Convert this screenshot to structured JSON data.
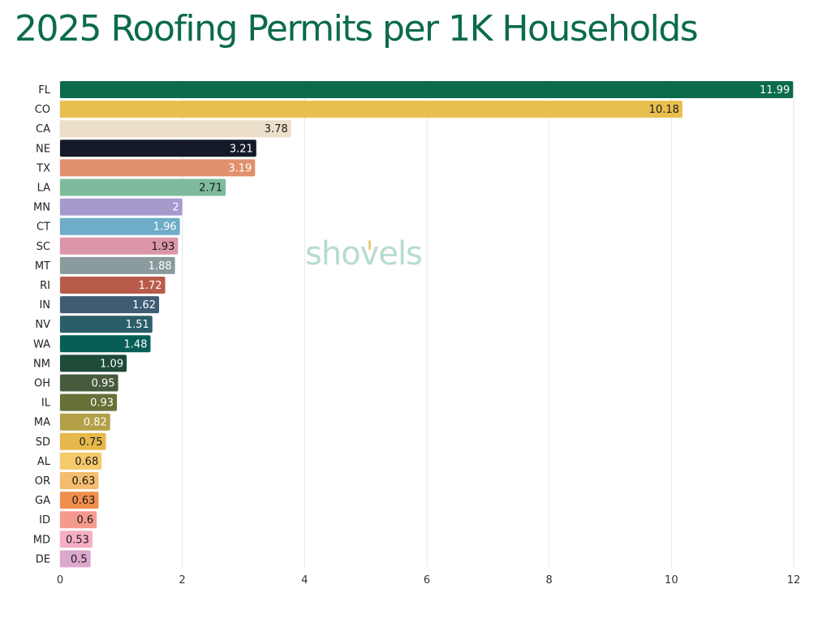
{
  "title": "2025 Roofing Permits per 1K Households",
  "watermark": "shovels",
  "chart_data": {
    "type": "bar",
    "orientation": "horizontal",
    "title": "2025 Roofing Permits per 1K Households",
    "xlabel": "",
    "ylabel": "",
    "xlim": [
      0,
      12
    ],
    "xticks": [
      0,
      2,
      4,
      6,
      8,
      10,
      12
    ],
    "grid": true,
    "categories": [
      "FL",
      "CO",
      "CA",
      "NE",
      "TX",
      "LA",
      "MN",
      "CT",
      "SC",
      "MT",
      "RI",
      "IN",
      "NV",
      "WA",
      "NM",
      "OH",
      "IL",
      "MA",
      "SD",
      "AL",
      "OR",
      "GA",
      "ID",
      "MD",
      "DE"
    ],
    "values": [
      11.99,
      10.18,
      3.78,
      3.21,
      3.19,
      2.71,
      2,
      1.96,
      1.93,
      1.88,
      1.72,
      1.62,
      1.51,
      1.48,
      1.09,
      0.95,
      0.93,
      0.82,
      0.75,
      0.68,
      0.63,
      0.63,
      0.6,
      0.53,
      0.5
    ],
    "colors": [
      "#0b6b4a",
      "#e8bf4e",
      "#ebdfca",
      "#141a2a",
      "#e0906c",
      "#7dbb9c",
      "#a899cd",
      "#6eacc7",
      "#db96a9",
      "#8b9a9c",
      "#b95b4b",
      "#3f5c73",
      "#2a5f69",
      "#065e56",
      "#1e4a38",
      "#485a3c",
      "#657136",
      "#b3a047",
      "#e6b84c",
      "#f6c96a",
      "#f4bc6d",
      "#f08f4d",
      "#f79a8e",
      "#f6aec5",
      "#dca8cd"
    ],
    "label_colors": [
      "#ffffff",
      "#1a1a1a",
      "#1a1a1a",
      "#ffffff",
      "#ffffff",
      "#1a1a1a",
      "#ffffff",
      "#ffffff",
      "#1a1a1a",
      "#ffffff",
      "#ffffff",
      "#ffffff",
      "#ffffff",
      "#ffffff",
      "#ffffff",
      "#ffffff",
      "#ffffff",
      "#ffffff",
      "#1a1a1a",
      "#1a1a1a",
      "#1a1a1a",
      "#1a1a1a",
      "#1a1a1a",
      "#1a1a1a",
      "#1a1a1a"
    ]
  }
}
